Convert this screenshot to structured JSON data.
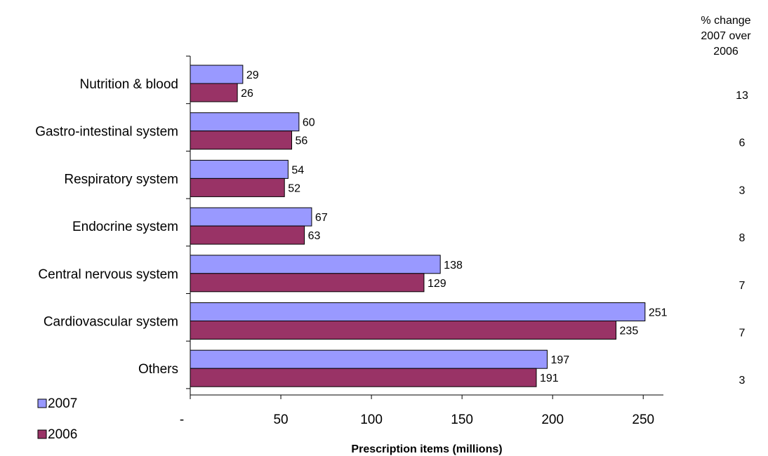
{
  "chart_data": {
    "type": "bar",
    "orientation": "horizontal",
    "categories": [
      "Nutrition & blood",
      "Gastro-intestinal system",
      "Respiratory system",
      "Endocrine system",
      "Central nervous system",
      "Cardiovascular system",
      "Others"
    ],
    "series": [
      {
        "name": "2007",
        "values": [
          29,
          60,
          54,
          67,
          138,
          251,
          197
        ],
        "color": "#9999ff"
      },
      {
        "name": "2006",
        "values": [
          26,
          56,
          52,
          63,
          129,
          235,
          191
        ],
        "color": "#993366"
      }
    ],
    "value_labels": {
      "2007": [
        "29",
        "60",
        "54",
        "67",
        "138",
        "251",
        "197"
      ],
      "2006": [
        "26",
        "56",
        "52",
        "63",
        "129",
        "235",
        "191"
      ]
    },
    "xlabel": "Prescription items (millions)",
    "xlim": [
      0,
      260
    ],
    "xticks": [
      0,
      50,
      100,
      150,
      200,
      250
    ],
    "xtick_labels": [
      "-",
      "50",
      "100",
      "150",
      "200",
      "250"
    ],
    "pct_change_header": [
      "% change",
      "2007 over",
      "2006"
    ],
    "pct_change": [
      "13",
      "6",
      "3",
      "8",
      "7",
      "7",
      "3"
    ],
    "legend_position": "bottom-left",
    "grid": false
  }
}
